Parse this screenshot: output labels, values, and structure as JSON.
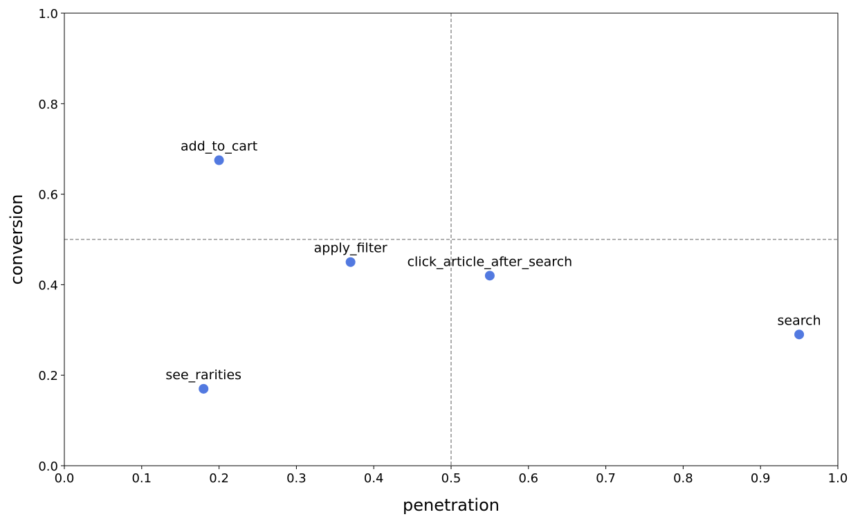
{
  "chart_data": {
    "type": "scatter",
    "title": "",
    "xlabel": "penetration",
    "ylabel": "conversion",
    "xlim": [
      0.0,
      1.0
    ],
    "ylim": [
      0.0,
      1.0
    ],
    "xticks": [
      "0.0",
      "0.1",
      "0.2",
      "0.3",
      "0.4",
      "0.5",
      "0.6",
      "0.7",
      "0.8",
      "0.9",
      "1.0"
    ],
    "yticks": [
      "0.0",
      "0.2",
      "0.4",
      "0.6",
      "0.8",
      "1.0"
    ],
    "reference_lines": {
      "x": 0.5,
      "y": 0.5,
      "style": "dashed",
      "color": "#808080"
    },
    "grid": false,
    "marker_color": "#5279e0",
    "points": [
      {
        "label": "add_to_cart",
        "x": 0.2,
        "y": 0.675
      },
      {
        "label": "apply_filter",
        "x": 0.37,
        "y": 0.45
      },
      {
        "label": "click_article_after_search",
        "x": 0.55,
        "y": 0.42
      },
      {
        "label": "search",
        "x": 0.95,
        "y": 0.29
      },
      {
        "label": "see_rarities",
        "x": 0.18,
        "y": 0.17
      }
    ]
  }
}
